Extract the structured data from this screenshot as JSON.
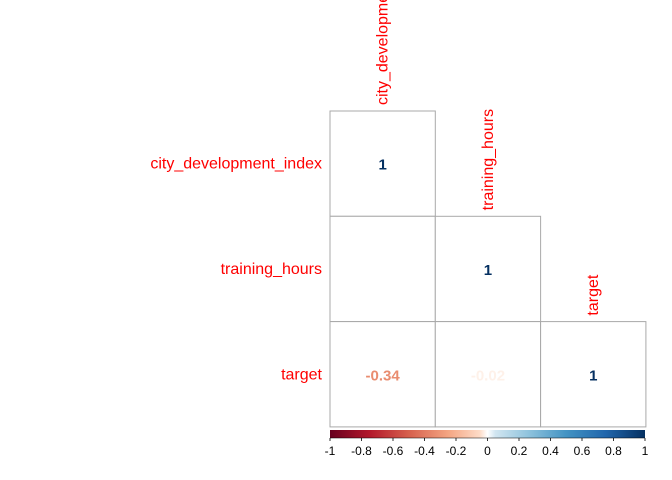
{
  "chart_data": {
    "type": "heatmap",
    "title": "",
    "variables": [
      "city_development_index",
      "training_hours",
      "target"
    ],
    "matrix": [
      [
        1,
        null,
        null
      ],
      [
        0.0,
        1,
        null
      ],
      [
        -0.34,
        -0.02,
        1
      ]
    ],
    "cell_labels": [
      [
        "1",
        "",
        ""
      ],
      [
        "",
        "1",
        ""
      ],
      [
        "-0.34",
        "-0.02",
        "1"
      ]
    ],
    "colorbar": {
      "range": [
        -1,
        1
      ],
      "ticks": [
        -1,
        -0.8,
        -0.6,
        -0.4,
        -0.2,
        0,
        0.2,
        0.4,
        0.6,
        0.8,
        1
      ],
      "tick_labels": [
        "-1",
        "-0.8",
        "-0.6",
        "-0.4",
        "-0.2",
        "0",
        "0.2",
        "0.4",
        "0.6",
        "0.8",
        "1"
      ],
      "placement": "bottom"
    },
    "colors": {
      "label": "#ff0000",
      "grid": "#a9a9a9",
      "low": "#67001f",
      "high": "#053061"
    }
  }
}
